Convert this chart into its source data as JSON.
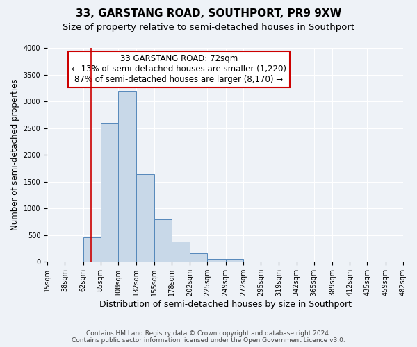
{
  "title": "33, GARSTANG ROAD, SOUTHPORT, PR9 9XW",
  "subtitle": "Size of property relative to semi-detached houses in Southport",
  "xlabel": "Distribution of semi-detached houses by size in Southport",
  "ylabel": "Number of semi-detached properties",
  "annotation_line1": "33 GARSTANG ROAD: 72sqm",
  "annotation_line2": "← 13% of semi-detached houses are smaller (1,220)",
  "annotation_line3": "87% of semi-detached houses are larger (8,170) →",
  "footer_line1": "Contains HM Land Registry data © Crown copyright and database right 2024.",
  "footer_line2": "Contains public sector information licensed under the Open Government Licence v3.0.",
  "bar_edges": [
    15,
    38,
    62,
    85,
    108,
    132,
    155,
    178,
    202,
    225,
    249,
    272,
    295,
    319,
    342,
    365,
    389,
    412,
    435,
    459,
    482
  ],
  "bar_heights": [
    5,
    5,
    460,
    2600,
    3200,
    1640,
    800,
    380,
    155,
    50,
    50,
    5,
    5,
    5,
    5,
    5,
    5,
    5,
    5,
    5
  ],
  "bar_color": "#c8d8e8",
  "bar_edge_color": "#5588bb",
  "red_line_x": 72,
  "ylim": [
    0,
    4000
  ],
  "yticks": [
    0,
    500,
    1000,
    1500,
    2000,
    2500,
    3000,
    3500,
    4000
  ],
  "xtick_labels": [
    "15sqm",
    "38sqm",
    "62sqm",
    "85sqm",
    "108sqm",
    "132sqm",
    "155sqm",
    "178sqm",
    "202sqm",
    "225sqm",
    "249sqm",
    "272sqm",
    "295sqm",
    "319sqm",
    "342sqm",
    "365sqm",
    "389sqm",
    "412sqm",
    "435sqm",
    "459sqm",
    "482sqm"
  ],
  "bg_color": "#eef2f7",
  "plot_bg_color": "#eef2f7",
  "grid_color": "#ffffff",
  "annotation_box_color": "#ffffff",
  "annotation_box_edge": "#cc0000",
  "red_line_color": "#cc0000",
  "title_fontsize": 11,
  "subtitle_fontsize": 9.5,
  "xlabel_fontsize": 9,
  "ylabel_fontsize": 8.5,
  "tick_fontsize": 7,
  "footer_fontsize": 6.5,
  "annotation_fontsize": 8.5
}
